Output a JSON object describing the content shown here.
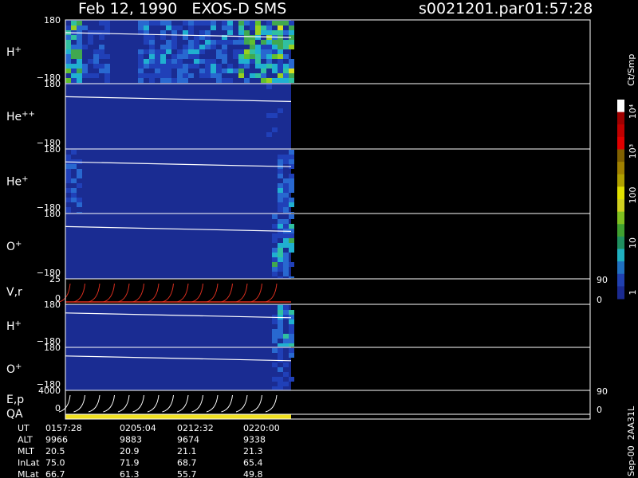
{
  "header": {
    "title": "Feb 12, 1990   EXOS-D SMS",
    "file": "s0021201.par",
    "time": "01:57:28"
  },
  "panels": [
    {
      "label": "H",
      "charge": "+",
      "ticks": [
        "180",
        "−180"
      ]
    },
    {
      "label": "He",
      "charge": "++",
      "ticks": [
        "180",
        "−180"
      ]
    },
    {
      "label": "He",
      "charge": "+",
      "ticks": [
        "180",
        "−180"
      ]
    },
    {
      "label": "O",
      "charge": "+",
      "ticks": [
        "180",
        "−180"
      ]
    },
    {
      "label": "V,r",
      "ticks": [
        "25",
        "0"
      ],
      "right_ticks": [
        "90",
        "0"
      ]
    },
    {
      "label": "H",
      "charge": "+",
      "ticks": [
        "180",
        "−180"
      ]
    },
    {
      "label": "O",
      "charge": "+",
      "ticks": [
        "180",
        "−180"
      ]
    },
    {
      "label": "E,p",
      "ticks": [
        "4000",
        "0"
      ],
      "right_ticks": [
        "90",
        "0"
      ]
    }
  ],
  "qa_label": "QA",
  "table": {
    "rows": [
      {
        "label": "UT",
        "values": [
          "0157:28",
          "0205:04",
          "0212:32",
          "0220:00"
        ]
      },
      {
        "label": "ALT",
        "values": [
          "9966",
          "9883",
          "9674",
          "9338"
        ]
      },
      {
        "label": "MLT",
        "values": [
          "20.5",
          "20.9",
          "21.1",
          "21.3"
        ]
      },
      {
        "label": "InLat",
        "values": [
          "75.0",
          "71.9",
          "68.7",
          "65.4"
        ]
      },
      {
        "label": "MLat",
        "values": [
          "66.7",
          "61.3",
          "55.7",
          "49.8"
        ]
      }
    ]
  },
  "colorbar": {
    "unit": "Ct/Smp",
    "labels": [
      "10⁴",
      "10³",
      "100",
      "10",
      "1"
    ]
  },
  "footer": "Sep-00  2AA31L"
}
